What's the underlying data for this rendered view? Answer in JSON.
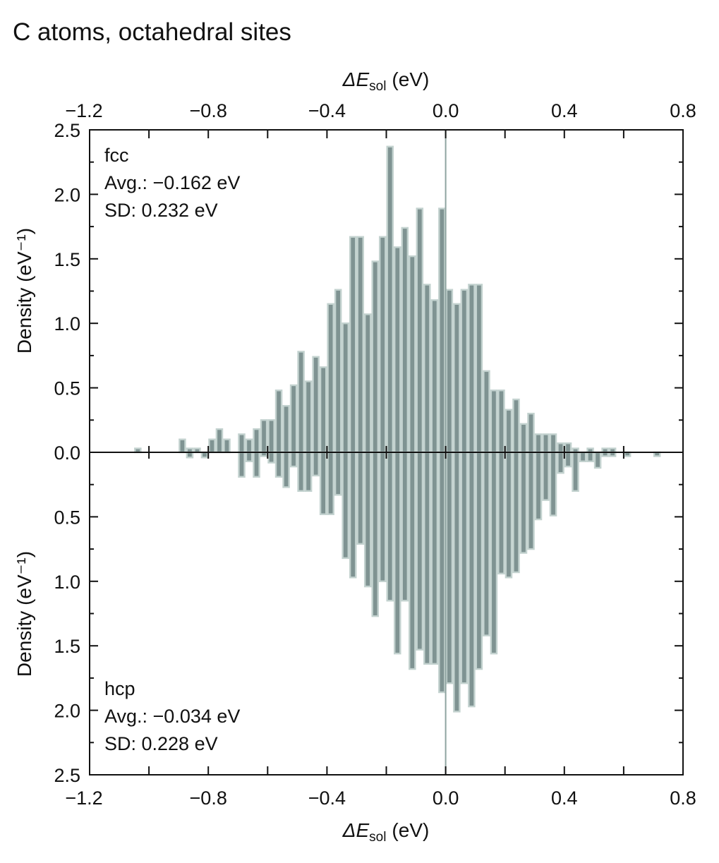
{
  "chart_data": {
    "type": "bar",
    "title": "C atoms, octahedral sites",
    "xlabel": {
      "symbol": "ΔE",
      "subscript": "sol",
      "unit": "(eV)"
    },
    "ylabel": "Density (eV⁻¹)",
    "xlim": [
      -1.2,
      0.8
    ],
    "ylim_top": [
      0,
      2.5
    ],
    "ylim_bottom": [
      0,
      2.5
    ],
    "bottom_axis_inverted": true,
    "grid": false,
    "x_tick_labels": [
      "−1.2",
      "−0.8",
      "−0.4",
      "0.0",
      "0.4",
      "0.8"
    ],
    "x_tick_values": [
      -1.2,
      -0.8,
      -0.4,
      0.0,
      0.4,
      0.8
    ],
    "y_tick_labels_top": [
      "0.0",
      "0.5",
      "1.0",
      "1.5",
      "2.0",
      "2.5"
    ],
    "y_tick_labels_bottom": [
      "0.5",
      "1.0",
      "1.5",
      "2.0",
      "2.5"
    ],
    "y_tick_values_top": [
      0,
      0.5,
      1.0,
      1.5,
      2.0,
      2.5
    ],
    "y_tick_values_bottom": [
      0.5,
      1.0,
      1.5,
      2.0,
      2.5
    ],
    "bin_start": -1.05,
    "bin_width": 0.025,
    "series": [
      {
        "name": "fcc",
        "position": "top",
        "annotation": {
          "label": "fcc",
          "avg": "Avg.: −0.162 eV",
          "sd": "SD: 0.232 eV"
        },
        "values": [
          0.03,
          0,
          0,
          0,
          0,
          0,
          0.1,
          0.03,
          0.03,
          0,
          0.1,
          0.18,
          0.1,
          0,
          0.14,
          0.1,
          0.18,
          0.25,
          0.25,
          0.48,
          0.36,
          0.52,
          0.78,
          0.55,
          0.74,
          0.66,
          1.15,
          1.26,
          1.0,
          1.67,
          1.67,
          1.07,
          1.48,
          1.67,
          2.37,
          1.59,
          1.74,
          1.52,
          1.89,
          1.3,
          1.18,
          1.89,
          1.26,
          1.15,
          1.26,
          1.3,
          1.3,
          0.63,
          0.48,
          0.48,
          0.33,
          0.41,
          0.22,
          0.3,
          0.14,
          0.14,
          0.14,
          0.07,
          0.07,
          0.03,
          0,
          0.03,
          0,
          0.03,
          0.03,
          0,
          0,
          0,
          0,
          0,
          0
        ]
      },
      {
        "name": "hcp",
        "position": "bottom",
        "annotation": {
          "label": "hcp",
          "avg": "Avg.: −0.034 eV",
          "sd": "SD: 0.228 eV"
        },
        "values": [
          0,
          0,
          0,
          0,
          0,
          0,
          0,
          0.04,
          0,
          0.04,
          0,
          0,
          0,
          0,
          0.19,
          0.07,
          0.19,
          0.03,
          0.08,
          0.19,
          0.27,
          0.11,
          0.3,
          0.3,
          0.18,
          0.48,
          0.48,
          0.33,
          0.82,
          0.97,
          0.71,
          1.04,
          1.27,
          1.0,
          1.15,
          1.56,
          1.15,
          1.68,
          1.53,
          1.64,
          1.64,
          1.86,
          1.79,
          2.01,
          1.79,
          1.97,
          1.68,
          1.42,
          1.56,
          0.94,
          0.97,
          0.93,
          0.78,
          0.75,
          0.52,
          0.37,
          0.49,
          0.16,
          0.11,
          0.3,
          0.07,
          0.07,
          0.12,
          0.03,
          0.03,
          0,
          0.03,
          0,
          0,
          0,
          0.03
        ]
      }
    ],
    "colors": {
      "bar_fill": "#7f9392",
      "bar_edge": "#c3d2cf",
      "zero_line": "#8fa4a1",
      "axis": "#111111"
    }
  }
}
